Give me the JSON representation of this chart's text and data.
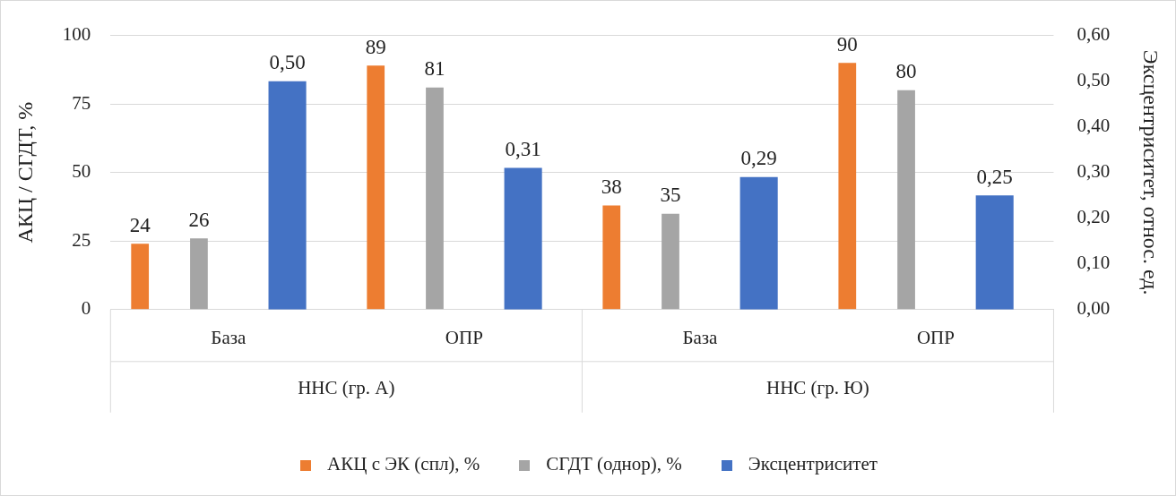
{
  "chart_data": {
    "type": "bar",
    "ylabel": "АКЦ / СГДТ, %",
    "y2label": "Эксцентриситет, относ. ед.",
    "categories": [
      "База",
      "ОПР",
      "База",
      "ОПР"
    ],
    "annotations": [
      "ННС (гр. А)",
      "ННС (гр. Ю)"
    ],
    "series": [
      {
        "name": "АКЦ с ЭК (спл), %",
        "color": "#ed7d31",
        "values": [
          24,
          89,
          38,
          90
        ],
        "value_labels": [
          "24",
          "89",
          "38",
          "90"
        ]
      },
      {
        "name": "СГДТ (однор), %",
        "color": "#a5a5a5",
        "values": [
          26,
          81,
          35,
          80
        ],
        "value_labels": [
          "26",
          "81",
          "35",
          "80"
        ]
      },
      {
        "name": "Эксцентриситет",
        "color": "#4472c4",
        "axis": "y2",
        "values": [
          0.5,
          0.31,
          0.29,
          0.25
        ],
        "value_labels": [
          "0,50",
          "0,31",
          "0,29",
          "0,25"
        ]
      }
    ],
    "ylim": [
      0,
      100
    ],
    "yticks": [
      0,
      25,
      50,
      75,
      100
    ],
    "y2lim": [
      0,
      0.6
    ],
    "y2ticks": [
      {
        "value": 0,
        "label": "0,00"
      },
      {
        "value": 0.1,
        "label": "0,10"
      },
      {
        "value": 0.2,
        "label": "0,20"
      },
      {
        "value": 0.3,
        "label": "0,30"
      },
      {
        "value": 0.4,
        "label": "0,40"
      },
      {
        "value": 0.5,
        "label": "0,50"
      },
      {
        "value": 0.6,
        "label": "0,60"
      }
    ],
    "grid": "y",
    "legend": "bottom"
  }
}
